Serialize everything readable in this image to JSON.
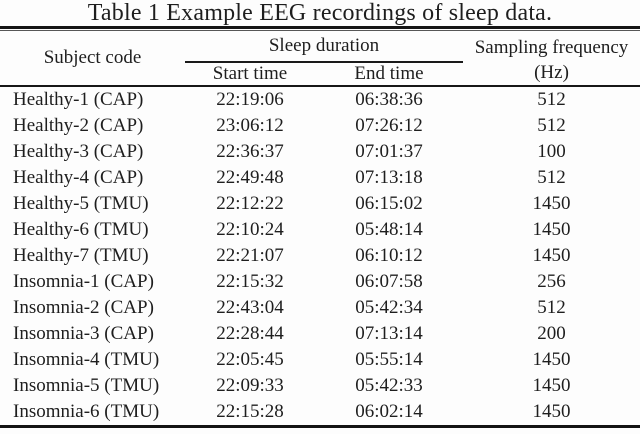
{
  "title": "Table 1 Example EEG recordings of sleep data.",
  "table": {
    "headers": {
      "subject": "Subject code",
      "sleep_group": "Sleep duration",
      "start": "Start time",
      "end": "End time",
      "sampling_line1": "Sampling frequency",
      "sampling_line2": "(Hz)"
    },
    "rows": [
      {
        "subject": "Healthy-1 (CAP)",
        "start": "22:19:06",
        "end": "06:38:36",
        "freq": "512"
      },
      {
        "subject": "Healthy-2 (CAP)",
        "start": "23:06:12",
        "end": "07:26:12",
        "freq": "512"
      },
      {
        "subject": "Healthy-3 (CAP)",
        "start": "22:36:37",
        "end": "07:01:37",
        "freq": "100"
      },
      {
        "subject": "Healthy-4 (CAP)",
        "start": "22:49:48",
        "end": "07:13:18",
        "freq": "512"
      },
      {
        "subject": "Healthy-5 (TMU)",
        "start": "22:12:22",
        "end": "06:15:02",
        "freq": "1450"
      },
      {
        "subject": "Healthy-6 (TMU)",
        "start": "22:10:24",
        "end": "05:48:14",
        "freq": "1450"
      },
      {
        "subject": "Healthy-7 (TMU)",
        "start": "22:21:07",
        "end": "06:10:12",
        "freq": "1450"
      },
      {
        "subject": "Insomnia-1 (CAP)",
        "start": "22:15:32",
        "end": "06:07:58",
        "freq": "256"
      },
      {
        "subject": "Insomnia-2 (CAP)",
        "start": "22:43:04",
        "end": "05:42:34",
        "freq": "512"
      },
      {
        "subject": "Insomnia-3 (CAP)",
        "start": "22:28:44",
        "end": "07:13:14",
        "freq": "200"
      },
      {
        "subject": "Insomnia-4 (TMU)",
        "start": "22:05:45",
        "end": "05:55:14",
        "freq": "1450"
      },
      {
        "subject": "Insomnia-5 (TMU)",
        "start": "22:09:33",
        "end": "05:42:33",
        "freq": "1450"
      },
      {
        "subject": "Insomnia-6 (TMU)",
        "start": "22:15:28",
        "end": "06:02:14",
        "freq": "1450"
      }
    ]
  },
  "colors": {
    "text": "#1e1e1e",
    "rule_heavy": "#151515",
    "rule_light": "#575757",
    "background": "#fdfdfd"
  }
}
